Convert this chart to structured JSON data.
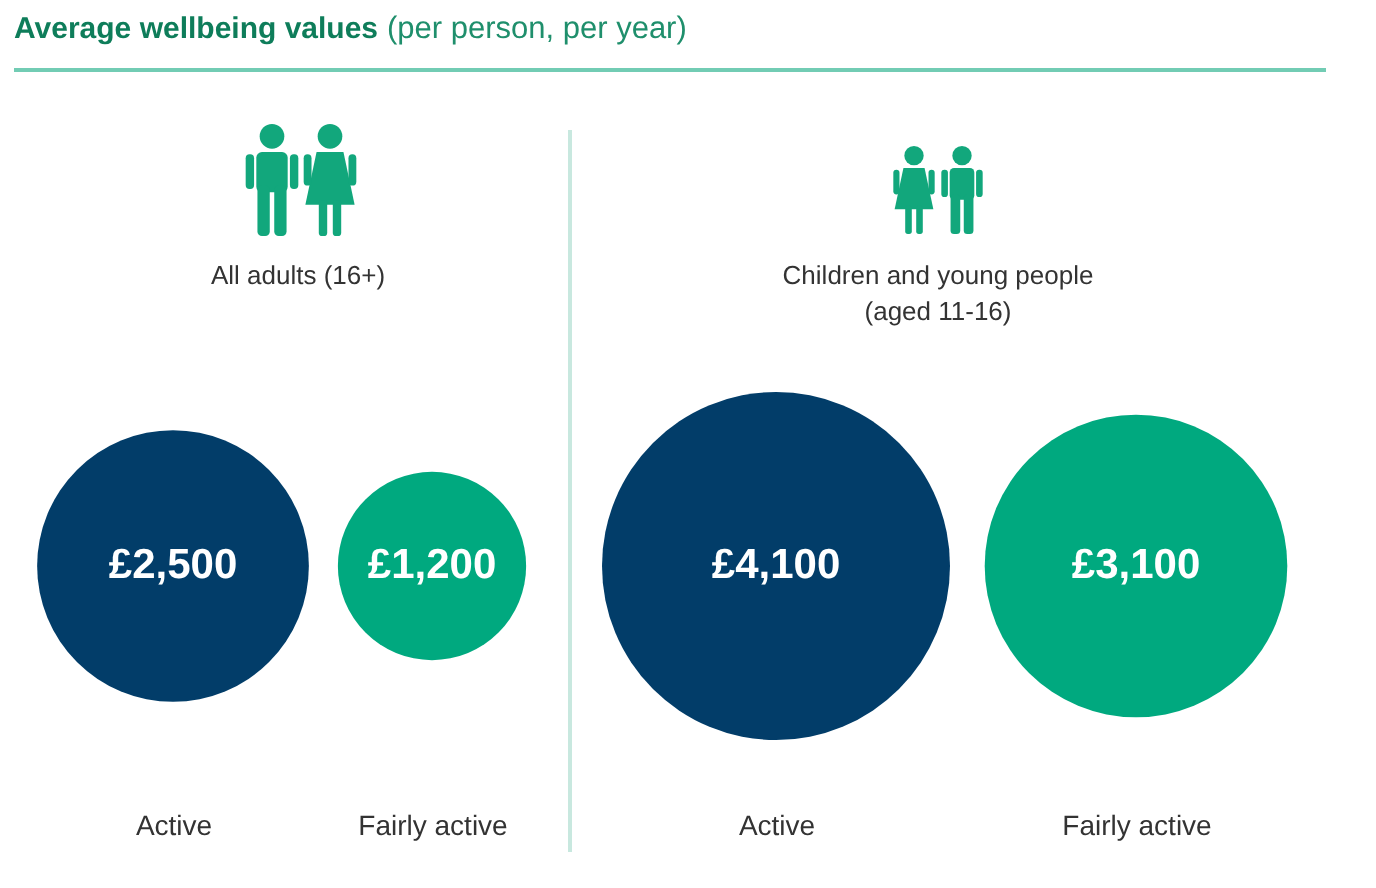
{
  "chart_data": [
    {
      "type": "other",
      "title": "Average wellbeing values",
      "subtitle": "(per person, per year)",
      "annotations": [
        "All adults (16+)"
      ],
      "categories": [
        "Active",
        "Fairly active"
      ],
      "values": [
        2500,
        1200
      ],
      "value_labels": [
        "£2,500",
        "£1,200"
      ],
      "colors": [
        "#023d69",
        "#00a97f"
      ]
    },
    {
      "type": "other",
      "annotations": [
        "Children and young people (aged 11-16)"
      ],
      "categories": [
        "Active",
        "Fairly active"
      ],
      "values": [
        4100,
        3100
      ],
      "value_labels": [
        "£4,100",
        "£3,100"
      ],
      "colors": [
        "#023d69",
        "#00a97f"
      ]
    }
  ]
}
